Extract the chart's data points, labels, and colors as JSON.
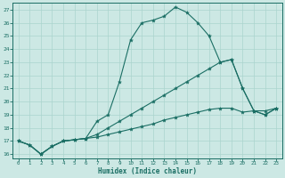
{
  "xlabel": "Humidex (Indice chaleur)",
  "bg_color": "#cce8e4",
  "grid_color": "#aad4ce",
  "line_color": "#1a6e64",
  "xlim": [
    -0.5,
    23.5
  ],
  "ylim": [
    15.7,
    27.5
  ],
  "yticks": [
    16,
    17,
    18,
    19,
    20,
    21,
    22,
    23,
    24,
    25,
    26,
    27
  ],
  "xticks": [
    0,
    1,
    2,
    3,
    4,
    5,
    6,
    7,
    8,
    9,
    10,
    11,
    12,
    13,
    14,
    15,
    16,
    17,
    18,
    19,
    20,
    21,
    22,
    23
  ],
  "line1_x": [
    0,
    1,
    2,
    3,
    4,
    5,
    6,
    7,
    8,
    9,
    10,
    11,
    12,
    13,
    14,
    15,
    16,
    17,
    18,
    19,
    20,
    21,
    22,
    23
  ],
  "line1_y": [
    17.0,
    16.7,
    16.0,
    16.6,
    17.0,
    17.1,
    17.2,
    18.5,
    19.0,
    21.5,
    24.7,
    26.0,
    26.2,
    26.5,
    27.2,
    26.8,
    26.0,
    25.0,
    23.0,
    23.2,
    21.0,
    19.3,
    19.0,
    19.5
  ],
  "line2_x": [
    0,
    1,
    2,
    3,
    4,
    5,
    6,
    7,
    8,
    9,
    10,
    11,
    12,
    13,
    14,
    15,
    16,
    17,
    18,
    19,
    20,
    21,
    22,
    23
  ],
  "line2_y": [
    17.0,
    16.7,
    16.0,
    16.6,
    17.0,
    17.1,
    17.2,
    17.5,
    18.0,
    18.5,
    19.0,
    19.5,
    20.0,
    20.5,
    21.0,
    21.5,
    22.0,
    22.5,
    23.0,
    23.2,
    21.0,
    19.3,
    19.0,
    19.5
  ],
  "line3_x": [
    0,
    1,
    2,
    3,
    4,
    5,
    6,
    7,
    8,
    9,
    10,
    11,
    12,
    13,
    14,
    15,
    16,
    17,
    18,
    19,
    20,
    21,
    22,
    23
  ],
  "line3_y": [
    17.0,
    16.7,
    16.0,
    16.6,
    17.0,
    17.1,
    17.2,
    17.3,
    17.5,
    17.7,
    17.9,
    18.1,
    18.3,
    18.6,
    18.8,
    19.0,
    19.2,
    19.4,
    19.5,
    19.5,
    19.2,
    19.3,
    19.3,
    19.5
  ]
}
